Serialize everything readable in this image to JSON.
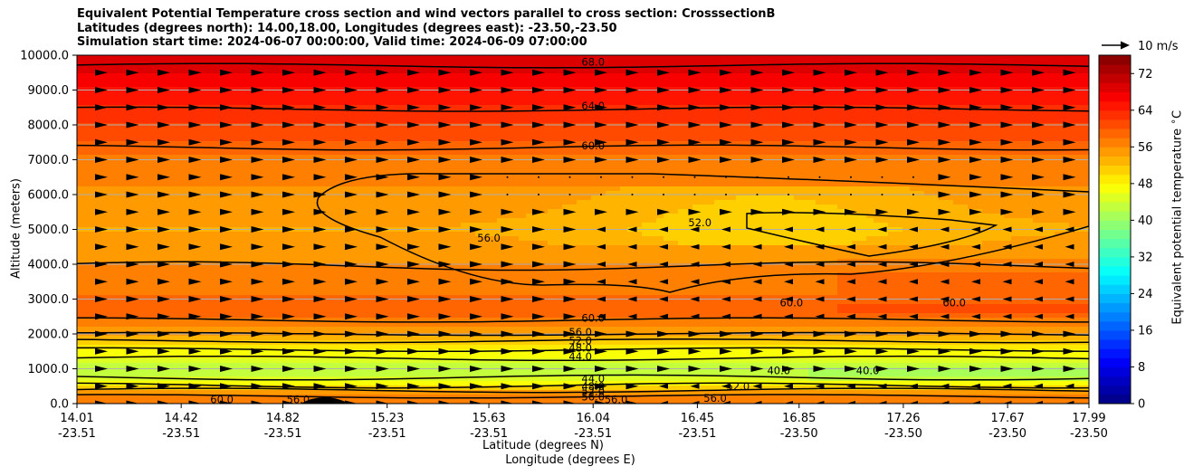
{
  "chart_data": {
    "type": "contour",
    "title_lines": [
      "Equivalent Potential Temperature cross section and wind vectors parallel to cross section: CrosssectionB",
      "Latitudes (degrees north): 14.00,18.00, Longitudes (degrees east): -23.50,-23.50",
      "Simulation start time: 2024-06-07 00:00:00, Valid time: 2024-06-09 07:00:00"
    ],
    "ylabel": "Altitude (meters)",
    "xlabel_lat": "Latitude (degrees N)",
    "xlabel_lon": "Longitude (degrees E)",
    "ylim": [
      0,
      10000
    ],
    "y_ticks": [
      "0.0",
      "1000.0",
      "2000.0",
      "3000.0",
      "4000.0",
      "5000.0",
      "6000.0",
      "7000.0",
      "8000.0",
      "9000.0",
      "10000.0"
    ],
    "x_ticks_lat": [
      "14.01",
      "14.42",
      "14.82",
      "15.23",
      "15.63",
      "16.04",
      "16.45",
      "16.85",
      "17.26",
      "17.67",
      "17.99"
    ],
    "x_ticks_lon": [
      "-23.51",
      "-23.51",
      "-23.51",
      "-23.51",
      "-23.51",
      "-23.51",
      "-23.51",
      "-23.50",
      "-23.50",
      "-23.50",
      "-23.50"
    ],
    "colorbar_label": "Equivalent potential temperature $^\\circ$C",
    "colorbar_ticks": [
      "0",
      "8",
      "16",
      "24",
      "32",
      "40",
      "48",
      "56",
      "64",
      "72"
    ],
    "colorbar_range": [
      0,
      76
    ],
    "wind_key_label": "10 m/s",
    "contour_labels": [
      {
        "text": "68.0",
        "x": 16.04,
        "y": 9800
      },
      {
        "text": "64.0",
        "x": 16.04,
        "y": 8550
      },
      {
        "text": "60.0",
        "x": 16.04,
        "y": 7400
      },
      {
        "text": "56.0",
        "x": 15.63,
        "y": 4750
      },
      {
        "text": "52.0",
        "x": 16.46,
        "y": 5200
      },
      {
        "text": "60.0",
        "x": 16.04,
        "y": 2450
      },
      {
        "text": "56.0",
        "x": 15.99,
        "y": 2050
      },
      {
        "text": "52.0",
        "x": 15.99,
        "y": 1800
      },
      {
        "text": "48.0",
        "x": 15.99,
        "y": 1600
      },
      {
        "text": "44.0",
        "x": 15.99,
        "y": 1350
      },
      {
        "text": "44.0",
        "x": 16.04,
        "y": 720
      },
      {
        "text": "48.0",
        "x": 16.04,
        "y": 500
      },
      {
        "text": "52.0",
        "x": 16.04,
        "y": 350
      },
      {
        "text": "56.0",
        "x": 16.04,
        "y": 200
      },
      {
        "text": "52.0",
        "x": 16.61,
        "y": 500
      },
      {
        "text": "60.0",
        "x": 16.82,
        "y": 2900
      },
      {
        "text": "60.0",
        "x": 17.46,
        "y": 2900
      },
      {
        "text": "40.0",
        "x": 16.77,
        "y": 950
      },
      {
        "text": "40.0",
        "x": 17.12,
        "y": 950
      },
      {
        "text": "60.0",
        "x": 14.58,
        "y": 120
      },
      {
        "text": "56.0",
        "x": 14.88,
        "y": 120
      },
      {
        "text": "56.0",
        "x": 16.13,
        "y": 120
      },
      {
        "text": "56.0",
        "x": 16.52,
        "y": 150
      }
    ]
  }
}
